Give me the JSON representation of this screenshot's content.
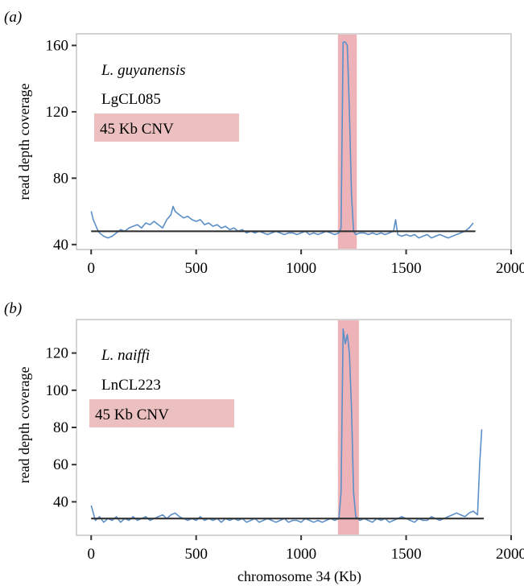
{
  "figure": {
    "xlabel": "chromosome 34 (Kb)"
  },
  "chart_data": [
    {
      "type": "line",
      "panel_label": "(a)",
      "species": "L. guyanensis",
      "strain": "LgCL085",
      "cnv_label": "45 Kb CNV",
      "ylabel": "read depth coverage",
      "xlim": [
        -70,
        2000
      ],
      "ylim": [
        37,
        167
      ],
      "xticks": [
        0,
        500,
        1000,
        1500,
        2000
      ],
      "yticks": [
        40,
        80,
        120,
        160
      ],
      "cnv_region": [
        1175,
        1265
      ],
      "baseline": {
        "y": 48,
        "x": [
          0,
          1830
        ]
      },
      "colors": {
        "coverage": "#5b8fc8",
        "baseline": "#333333",
        "cnv": "#e8a0a6",
        "cnv_box": "#ecc0c0"
      },
      "series": [
        {
          "x": [
            0,
            10,
            20,
            30,
            40,
            60,
            80,
            100,
            120,
            140,
            160,
            180,
            200,
            220,
            240,
            260,
            280,
            300,
            320,
            340,
            360,
            380,
            390,
            400,
            420,
            440,
            460,
            480,
            500,
            520,
            540,
            560,
            580,
            600,
            620,
            640,
            660,
            680,
            700,
            720,
            740,
            760,
            780,
            800,
            820,
            840,
            860,
            880,
            900,
            920,
            940,
            960,
            980,
            1000,
            1020,
            1040,
            1060,
            1080,
            1100,
            1120,
            1140,
            1160,
            1180,
            1190,
            1200,
            1210,
            1220,
            1230,
            1240,
            1250,
            1260,
            1280,
            1300,
            1320,
            1340,
            1360,
            1380,
            1400,
            1420,
            1440,
            1450,
            1460,
            1480,
            1500,
            1520,
            1540,
            1560,
            1580,
            1600,
            1620,
            1640,
            1660,
            1680,
            1700,
            1720,
            1740,
            1760,
            1780,
            1800,
            1820
          ],
          "y": [
            60,
            55,
            52,
            49,
            47,
            45,
            44,
            45,
            47,
            49,
            48,
            50,
            51,
            52,
            50,
            53,
            52,
            54,
            52,
            50,
            55,
            58,
            63,
            60,
            58,
            56,
            57,
            55,
            54,
            55,
            52,
            53,
            51,
            52,
            50,
            51,
            49,
            50,
            48,
            49,
            47,
            48,
            47,
            48,
            47,
            46,
            47,
            48,
            47,
            46,
            47,
            47,
            46,
            47,
            48,
            46,
            47,
            46,
            47,
            48,
            47,
            46,
            47,
            50,
            162,
            162,
            160,
            120,
            70,
            48,
            46,
            47,
            47,
            46,
            47,
            46,
            47,
            46,
            47,
            48,
            55,
            46,
            45,
            46,
            45,
            46,
            44,
            45,
            46,
            44,
            45,
            46,
            45,
            44,
            45,
            46,
            47,
            48,
            50,
            53
          ]
        }
      ]
    },
    {
      "type": "line",
      "panel_label": "(b)",
      "species": "L. naiffi",
      "strain": "LnCL223",
      "cnv_label": "45 Kb CNV",
      "ylabel": "read depth coverage",
      "xlim": [
        -70,
        2000
      ],
      "ylim": [
        22,
        138
      ],
      "xticks": [
        0,
        500,
        1000,
        1500,
        2000
      ],
      "yticks": [
        40,
        60,
        80,
        100,
        120
      ],
      "cnv_region": [
        1175,
        1275
      ],
      "baseline": {
        "y": 31,
        "x": [
          0,
          1870
        ]
      },
      "colors": {
        "coverage": "#5b8fc8",
        "baseline": "#333333",
        "cnv": "#e8a0a6",
        "cnv_box": "#ecc0c0"
      },
      "series": [
        {
          "x": [
            0,
            10,
            20,
            40,
            60,
            80,
            100,
            120,
            140,
            160,
            180,
            200,
            220,
            240,
            260,
            280,
            300,
            320,
            340,
            360,
            380,
            400,
            420,
            440,
            460,
            480,
            500,
            520,
            540,
            560,
            580,
            600,
            620,
            640,
            660,
            680,
            700,
            720,
            740,
            760,
            780,
            800,
            820,
            840,
            860,
            880,
            900,
            920,
            940,
            960,
            980,
            1000,
            1020,
            1040,
            1060,
            1080,
            1100,
            1120,
            1140,
            1160,
            1180,
            1190,
            1200,
            1210,
            1220,
            1230,
            1240,
            1250,
            1260,
            1280,
            1300,
            1320,
            1340,
            1360,
            1380,
            1400,
            1420,
            1440,
            1460,
            1480,
            1500,
            1520,
            1540,
            1560,
            1580,
            1600,
            1620,
            1640,
            1660,
            1680,
            1700,
            1720,
            1740,
            1760,
            1780,
            1800,
            1820,
            1840,
            1850,
            1860
          ],
          "y": [
            38,
            34,
            30,
            32,
            29,
            31,
            30,
            32,
            29,
            31,
            30,
            32,
            30,
            31,
            32,
            30,
            31,
            32,
            33,
            31,
            33,
            34,
            32,
            31,
            30,
            31,
            30,
            32,
            30,
            31,
            30,
            31,
            29,
            31,
            30,
            31,
            30,
            31,
            29,
            30,
            31,
            29,
            30,
            31,
            30,
            29,
            30,
            31,
            29,
            30,
            30,
            29,
            31,
            30,
            29,
            30,
            29,
            30,
            31,
            30,
            31,
            45,
            133,
            125,
            130,
            120,
            90,
            45,
            32,
            30,
            31,
            30,
            29,
            31,
            30,
            31,
            29,
            30,
            31,
            32,
            31,
            30,
            29,
            31,
            30,
            30,
            32,
            31,
            30,
            31,
            32,
            33,
            34,
            33,
            32,
            34,
            35,
            33,
            60,
            79
          ]
        }
      ]
    }
  ]
}
